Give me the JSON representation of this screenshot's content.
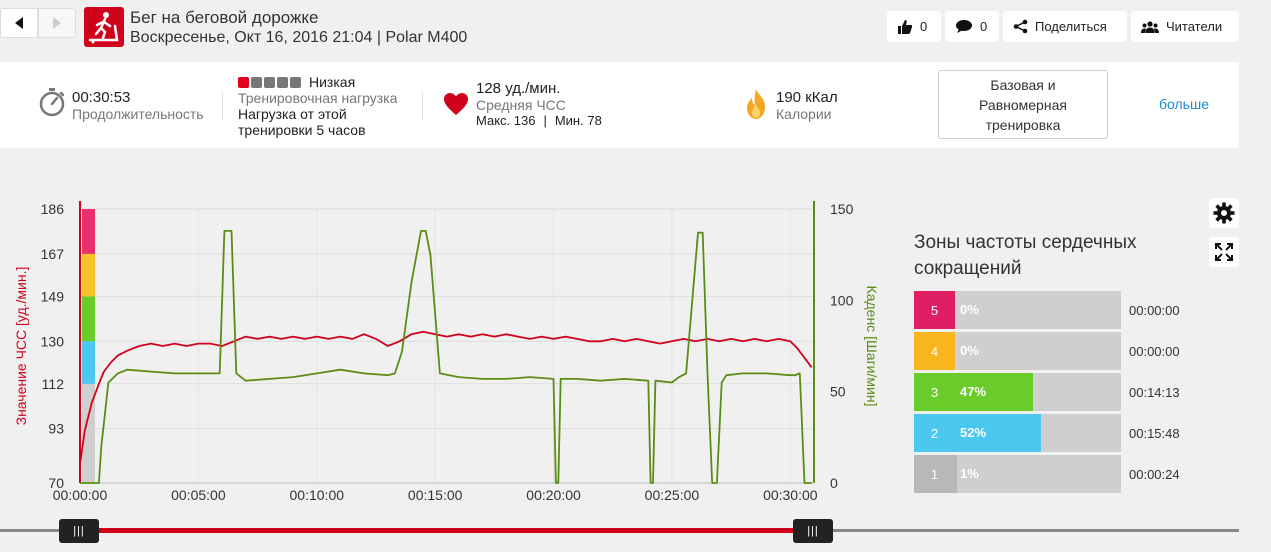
{
  "header": {
    "title": "Бег на беговой дорожке",
    "subtitle": "Воскресенье, Окт 16, 2016 21:04 | Polar M400",
    "like_count": "0",
    "comment_count": "0",
    "share_label": "Поделиться",
    "readers_label": "Читатели"
  },
  "summary": {
    "duration_value": "00:30:53",
    "duration_label": "Продолжительность",
    "load_level": "Низкая",
    "load_bars_filled": 1,
    "load_bars_total": 5,
    "load_label": "Тренировочная нагрузка",
    "load_desc_1": "Нагрузка от этой",
    "load_desc_2": "тренировки 5 часов",
    "hr_value": "128 уд./мин.",
    "hr_label": "Средняя ЧСС",
    "hr_max": "Макс. 136",
    "hr_sep": "|",
    "hr_min": "Мин. 78",
    "cal_value": "190 кКал",
    "cal_label": "Калории",
    "training_type": "Базовая и Равномерная тренировка",
    "more_label": "больше"
  },
  "chart_data": {
    "type": "line",
    "x_ticks": [
      "00:00:00",
      "00:05:00",
      "00:10:00",
      "00:15:00",
      "00:20:00",
      "00:25:00",
      "00:30:00"
    ],
    "y_left_ticks": [
      "70",
      "93",
      "112",
      "130",
      "149",
      "167",
      "186"
    ],
    "y_right_ticks": [
      "0",
      "50",
      "100",
      "150"
    ],
    "ylabel_left": "Значение ЧСС [уд./мин.]",
    "ylabel_right": "Каденс [Шаги/мин]",
    "ylim_left": [
      70,
      186
    ],
    "ylim_right": [
      0,
      150
    ],
    "x_range_min": [
      0,
      31
    ],
    "series": [
      {
        "name": "hr",
        "axis": "left",
        "color": "#d0021b",
        "x": [
          0,
          0.2,
          0.5,
          0.8,
          1.0,
          1.3,
          1.6,
          2,
          2.5,
          3,
          3.5,
          4,
          4.5,
          5,
          5.5,
          6,
          6.5,
          7,
          7.5,
          8,
          8.5,
          9,
          9.5,
          10,
          10.5,
          11,
          11.5,
          12,
          12.5,
          13,
          13.5,
          14,
          14.5,
          15,
          15.5,
          16,
          16.5,
          17,
          17.5,
          18,
          18.5,
          19,
          19.5,
          20,
          20.5,
          21,
          21.5,
          22,
          22.5,
          23,
          23.5,
          24,
          24.5,
          25,
          25.5,
          26,
          26.5,
          27,
          27.5,
          28,
          28.5,
          29,
          29.5,
          30,
          30.3,
          30.6,
          30.9
        ],
        "values": [
          78,
          92,
          104,
          112,
          117,
          121,
          124,
          126,
          128,
          129,
          128,
          129,
          128,
          129,
          129,
          128,
          130,
          132,
          131,
          132,
          131,
          132,
          131,
          132,
          131,
          132,
          131,
          133,
          131,
          128,
          130,
          133,
          134,
          133,
          132,
          133,
          132,
          133,
          132,
          133,
          132,
          131,
          132,
          131,
          132,
          131,
          130,
          130,
          131,
          130,
          131,
          130,
          129,
          130,
          131,
          130,
          131,
          130,
          131,
          130,
          131,
          130,
          131,
          130,
          127,
          123,
          119
        ]
      },
      {
        "name": "cadence",
        "axis": "right",
        "color": "#5b8c14",
        "x": [
          0,
          0.8,
          0.9,
          1.2,
          1.6,
          2,
          3,
          4,
          5,
          5.9,
          6.1,
          6.4,
          6.6,
          7,
          8,
          9,
          10,
          11,
          12,
          13,
          13.3,
          13.6,
          14.0,
          14.4,
          14.6,
          14.8,
          15.2,
          16,
          17,
          18,
          19,
          20,
          20.1,
          20.2,
          20.3,
          21,
          22,
          23,
          24,
          24.1,
          24.2,
          24.3,
          25,
          25.3,
          25.6,
          26.1,
          26.3,
          26.5,
          26.7,
          26.9,
          27.1,
          27.3,
          28,
          29,
          30,
          30.2,
          30.4,
          30.6,
          30.9
        ],
        "values": [
          0,
          0,
          20,
          55,
          60,
          62,
          61,
          60,
          60,
          60,
          138,
          138,
          60,
          56,
          57,
          58,
          60,
          62,
          60,
          59,
          60,
          72,
          110,
          138,
          138,
          125,
          60,
          58,
          57,
          57,
          58,
          57,
          0,
          0,
          57,
          57,
          56,
          57,
          56,
          0,
          0,
          56,
          55,
          58,
          60,
          137,
          137,
          60,
          0,
          0,
          55,
          59,
          60,
          60,
          59,
          59,
          60,
          0,
          0
        ]
      }
    ],
    "zone_colors": [
      "#cfcfcf",
      "#4ac8f0",
      "#6acc2b",
      "#f9c12a",
      "#e8306e"
    ]
  },
  "zones": {
    "title": "Зоны частоты сердечных сокращений",
    "items": [
      {
        "num": "5",
        "pct": "0%",
        "fill": 0.0,
        "time": "00:00:00",
        "color": "#e01e63"
      },
      {
        "num": "4",
        "pct": "0%",
        "fill": 0.0,
        "time": "00:00:00",
        "color": "#f9b51e"
      },
      {
        "num": "3",
        "pct": "47%",
        "fill": 0.47,
        "time": "00:14:13",
        "color": "#6acc2b"
      },
      {
        "num": "2",
        "pct": "52%",
        "fill": 0.52,
        "time": "00:15:48",
        "color": "#4ac8f0"
      },
      {
        "num": "1",
        "pct": "1%",
        "fill": 0.01,
        "time": "00:00:24",
        "color": "#b8b8b8"
      }
    ]
  },
  "icons": {
    "back": "arrow-left-icon",
    "forward": "arrow-right-icon",
    "sport": "treadmill-icon",
    "like": "thumbs-up-icon",
    "comment": "comment-icon",
    "share": "share-icon",
    "readers": "readers-icon",
    "duration": "stopwatch-icon",
    "heart": "heart-icon",
    "calories": "flame-icon",
    "settings": "gear-icon",
    "fullscreen": "expand-icon"
  },
  "slider": {
    "handle_label": "|||"
  }
}
